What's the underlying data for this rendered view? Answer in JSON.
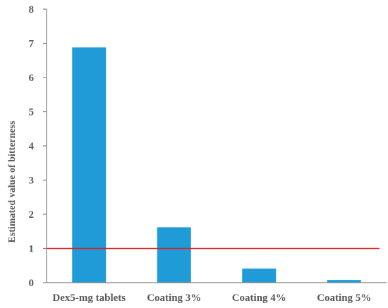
{
  "chart_data": {
    "type": "bar",
    "categories": [
      "Dex5-mg tablets",
      "Coating 3%",
      "Coating 4%",
      "Coating 5%"
    ],
    "values": [
      6.88,
      1.62,
      0.41,
      0.08
    ],
    "title": "",
    "xlabel": "",
    "ylabel": "Estimated value of bitterness",
    "ylim": [
      0,
      8
    ],
    "yticks": [
      0,
      1,
      2,
      3,
      4,
      5,
      6,
      7,
      8
    ],
    "reference_line": {
      "y": 1,
      "color": "#e31a1c"
    },
    "bar_color": "#1f9bd7",
    "grid": false,
    "legend": "none"
  }
}
